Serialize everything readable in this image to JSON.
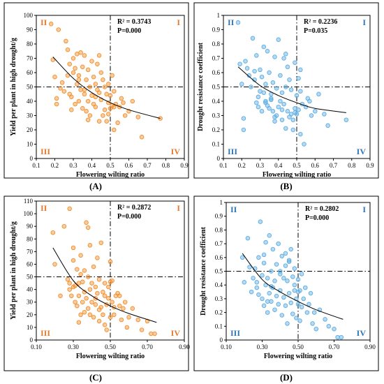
{
  "chart_data": [
    {
      "type": "scatter",
      "panel_label": "(A)",
      "xlabel": "Flowering wilting ratio",
      "ylabel": "Yield per plant in high drought/g",
      "xlim": [
        0.1,
        0.9
      ],
      "ylim": [
        0,
        100
      ],
      "xticks": [
        "0.1",
        "0.2",
        "0.3",
        "0.4",
        "0.5",
        "0.6",
        "0.7",
        "0.8",
        "0.9"
      ],
      "yticks": [
        "0",
        "10",
        "20",
        "30",
        "40",
        "50",
        "60",
        "70",
        "80",
        "90",
        "100"
      ],
      "r2_text": "R² = 0.3743",
      "p_text": "P=0.000",
      "quadrants": {
        "I": "I",
        "II": "II",
        "III": "III",
        "IV": "IV"
      },
      "color": "#F28E2B",
      "refline_x": 0.5,
      "refline_y": 50,
      "trend": {
        "type": "power",
        "x": [
          0.19,
          0.3,
          0.4,
          0.5,
          0.6,
          0.77
        ],
        "y": [
          71,
          56,
          46,
          39,
          34,
          28
        ]
      },
      "x": [
        0.18,
        0.19,
        0.2,
        0.21,
        0.22,
        0.23,
        0.24,
        0.25,
        0.26,
        0.27,
        0.28,
        0.28,
        0.29,
        0.3,
        0.3,
        0.31,
        0.31,
        0.32,
        0.32,
        0.33,
        0.33,
        0.34,
        0.34,
        0.35,
        0.35,
        0.36,
        0.36,
        0.37,
        0.37,
        0.38,
        0.38,
        0.39,
        0.39,
        0.4,
        0.4,
        0.41,
        0.41,
        0.42,
        0.42,
        0.43,
        0.43,
        0.44,
        0.44,
        0.45,
        0.45,
        0.46,
        0.46,
        0.47,
        0.47,
        0.48,
        0.48,
        0.49,
        0.49,
        0.5,
        0.5,
        0.51,
        0.51,
        0.52,
        0.52,
        0.53,
        0.54,
        0.55,
        0.56,
        0.57,
        0.58,
        0.6,
        0.62,
        0.65,
        0.67,
        0.77,
        0.21,
        0.27,
        0.33,
        0.38,
        0.44,
        0.49,
        0.52,
        0.29,
        0.36,
        0.42
      ],
      "y": [
        94,
        69,
        57,
        42,
        90,
        49,
        53,
        47,
        82,
        58,
        45,
        66,
        43,
        60,
        70,
        63,
        38,
        52,
        73,
        40,
        58,
        48,
        74,
        35,
        64,
        45,
        72,
        33,
        55,
        40,
        62,
        30,
        50,
        44,
        68,
        38,
        57,
        36,
        52,
        48,
        66,
        26,
        46,
        41,
        60,
        30,
        55,
        34,
        50,
        45,
        26,
        39,
        52,
        44,
        35,
        37,
        58,
        20,
        47,
        38,
        25,
        36,
        42,
        39,
        30,
        33,
        40,
        29,
        15,
        28,
        38,
        76,
        55,
        27,
        72,
        31,
        36,
        34,
        48,
        43
      ]
    },
    {
      "type": "scatter",
      "panel_label": "(B)",
      "xlabel": "Flowering wilting ratio",
      "ylabel": "Drought resistance coefficient",
      "xlim": [
        0.1,
        0.9
      ],
      "ylim": [
        0,
        1
      ],
      "xticks": [
        "0.1",
        "0.2",
        "0.3",
        "0.4",
        "0.5",
        "0.6",
        "0.7",
        "0.8",
        "0.9"
      ],
      "yticks": [
        "0",
        "0.1",
        "0.2",
        "0.3",
        "0.4",
        "0.5",
        "0.6",
        "0.7",
        "0.8",
        "0.9",
        "1"
      ],
      "r2_text": "R² = 0.2236",
      "p_text": "P=0.035",
      "quadrants": {
        "I": "I",
        "II": "II",
        "III": "III",
        "IV": "IV"
      },
      "color": "#5DADE2",
      "refline_x": 0.5,
      "refline_y": 0.5,
      "trend": {
        "type": "power",
        "x": [
          0.18,
          0.3,
          0.4,
          0.5,
          0.6,
          0.77
        ],
        "y": [
          0.64,
          0.51,
          0.44,
          0.39,
          0.35,
          0.32
        ]
      },
      "x": [
        0.18,
        0.19,
        0.2,
        0.21,
        0.22,
        0.23,
        0.24,
        0.25,
        0.26,
        0.27,
        0.28,
        0.28,
        0.29,
        0.3,
        0.3,
        0.31,
        0.31,
        0.32,
        0.32,
        0.33,
        0.33,
        0.34,
        0.34,
        0.35,
        0.35,
        0.36,
        0.36,
        0.37,
        0.37,
        0.38,
        0.38,
        0.39,
        0.39,
        0.4,
        0.4,
        0.41,
        0.41,
        0.42,
        0.42,
        0.43,
        0.43,
        0.44,
        0.44,
        0.45,
        0.45,
        0.46,
        0.46,
        0.47,
        0.47,
        0.48,
        0.48,
        0.49,
        0.49,
        0.5,
        0.5,
        0.51,
        0.51,
        0.52,
        0.52,
        0.53,
        0.54,
        0.55,
        0.56,
        0.57,
        0.58,
        0.6,
        0.62,
        0.65,
        0.67,
        0.77,
        0.21,
        0.27,
        0.33,
        0.38,
        0.44,
        0.49,
        0.52,
        0.29,
        0.36,
        0.42
      ],
      "y": [
        0.95,
        0.66,
        0.52,
        0.2,
        0.68,
        0.63,
        0.58,
        0.5,
        0.84,
        0.55,
        0.39,
        0.72,
        0.43,
        0.62,
        0.47,
        0.57,
        0.33,
        0.46,
        0.78,
        0.4,
        0.52,
        0.37,
        0.75,
        0.35,
        0.6,
        0.42,
        0.45,
        0.33,
        0.53,
        0.29,
        0.71,
        0.3,
        0.49,
        0.36,
        0.83,
        0.4,
        0.58,
        0.27,
        0.46,
        0.38,
        0.7,
        0.21,
        0.5,
        0.33,
        0.64,
        0.29,
        0.55,
        0.31,
        0.48,
        0.27,
        0.2,
        0.35,
        0.67,
        0.44,
        0.31,
        0.34,
        0.56,
        0.17,
        0.47,
        0.38,
        0.1,
        0.36,
        0.42,
        0.4,
        0.3,
        0.33,
        0.45,
        0.31,
        0.23,
        0.27,
        0.28,
        0.61,
        0.39,
        0.26,
        0.73,
        0.32,
        0.62,
        0.36,
        0.41,
        0.34
      ]
    },
    {
      "type": "scatter",
      "panel_label": "(C)",
      "xlabel": "Flowering wilting ratio",
      "ylabel": "Yield per plant in high drought/g",
      "xlim": [
        0.1,
        0.9
      ],
      "ylim": [
        0,
        110
      ],
      "xticks": [
        "0.10",
        "0.30",
        "0.50",
        "0.70",
        "0.90"
      ],
      "xtick_values": [
        0.1,
        0.3,
        0.5,
        0.7,
        0.9
      ],
      "yticks": [
        "0",
        "10",
        "20",
        "30",
        "40",
        "50",
        "60",
        "70",
        "80",
        "90",
        "100",
        "110"
      ],
      "r2_text": "R² = 0.2872",
      "p_text": "P=0.000",
      "quadrants": {
        "I": "I",
        "II": "II",
        "III": "III",
        "IV": "IV"
      },
      "color": "#F28E2B",
      "refline_x": 0.5,
      "refline_y": 50,
      "trend": {
        "type": "power",
        "x": [
          0.19,
          0.3,
          0.4,
          0.5,
          0.6,
          0.75
        ],
        "y": [
          73,
          47,
          35,
          27,
          21,
          14
        ]
      },
      "x": [
        0.19,
        0.2,
        0.23,
        0.25,
        0.27,
        0.28,
        0.28,
        0.29,
        0.3,
        0.3,
        0.31,
        0.31,
        0.32,
        0.32,
        0.33,
        0.33,
        0.34,
        0.34,
        0.35,
        0.35,
        0.36,
        0.36,
        0.37,
        0.37,
        0.38,
        0.38,
        0.38,
        0.39,
        0.39,
        0.4,
        0.4,
        0.41,
        0.41,
        0.42,
        0.42,
        0.43,
        0.43,
        0.44,
        0.44,
        0.45,
        0.45,
        0.46,
        0.46,
        0.47,
        0.47,
        0.48,
        0.48,
        0.49,
        0.49,
        0.5,
        0.5,
        0.51,
        0.51,
        0.52,
        0.52,
        0.53,
        0.54,
        0.55,
        0.56,
        0.57,
        0.58,
        0.59,
        0.6,
        0.62,
        0.65,
        0.67,
        0.7,
        0.72,
        0.74,
        0.3,
        0.36,
        0.42,
        0.47,
        0.33,
        0.39,
        0.44,
        0.5,
        0.55,
        0.28,
        0.34
      ],
      "y": [
        85,
        60,
        35,
        90,
        48,
        104,
        45,
        35,
        63,
        73,
        30,
        43,
        27,
        56,
        35,
        45,
        20,
        67,
        46,
        30,
        55,
        38,
        93,
        33,
        25,
        50,
        89,
        20,
        75,
        45,
        30,
        58,
        18,
        42,
        28,
        37,
        65,
        15,
        48,
        26,
        77,
        38,
        20,
        45,
        35,
        28,
        8,
        42,
        33,
        62,
        18,
        30,
        47,
        26,
        20,
        35,
        37,
        27,
        16,
        25,
        30,
        10,
        18,
        25,
        16,
        8,
        15,
        5,
        5,
        42,
        22,
        33,
        12,
        14,
        40,
        24,
        46,
        35,
        40,
        52
      ]
    },
    {
      "type": "scatter",
      "panel_label": "(D)",
      "xlabel": "Flowering wilting ratio",
      "ylabel": "Drought resistance coefficient",
      "xlim": [
        0.1,
        0.9
      ],
      "ylim": [
        0,
        1
      ],
      "xticks": [
        "0.10",
        "0.30",
        "0.50",
        "0.70",
        "0.90"
      ],
      "xtick_values": [
        0.1,
        0.3,
        0.5,
        0.7,
        0.9
      ],
      "yticks": [
        "0",
        "0.1",
        "0.2",
        "0.3",
        "0.4",
        "0.5",
        "0.6",
        "0.7",
        "0.8",
        "0.9",
        "1"
      ],
      "r2_text": "R² = 0.2802",
      "p_text": "P=0.000",
      "quadrants": {
        "I": "I",
        "II": "II",
        "III": "III",
        "IV": "IV"
      },
      "color": "#5DADE2",
      "refline_x": 0.5,
      "refline_y": 0.5,
      "trend": {
        "type": "power",
        "x": [
          0.19,
          0.3,
          0.4,
          0.5,
          0.6,
          0.75
        ],
        "y": [
          0.63,
          0.44,
          0.35,
          0.28,
          0.22,
          0.15
        ]
      },
      "x": [
        0.19,
        0.2,
        0.22,
        0.23,
        0.24,
        0.25,
        0.26,
        0.27,
        0.28,
        0.28,
        0.29,
        0.3,
        0.3,
        0.31,
        0.31,
        0.32,
        0.32,
        0.33,
        0.33,
        0.34,
        0.34,
        0.35,
        0.35,
        0.36,
        0.36,
        0.37,
        0.37,
        0.38,
        0.38,
        0.39,
        0.39,
        0.4,
        0.4,
        0.41,
        0.41,
        0.42,
        0.42,
        0.43,
        0.43,
        0.44,
        0.44,
        0.45,
        0.45,
        0.46,
        0.46,
        0.47,
        0.47,
        0.48,
        0.48,
        0.49,
        0.49,
        0.5,
        0.5,
        0.51,
        0.51,
        0.52,
        0.52,
        0.53,
        0.54,
        0.55,
        0.56,
        0.57,
        0.58,
        0.59,
        0.6,
        0.62,
        0.65,
        0.67,
        0.7,
        0.72,
        0.74,
        0.31,
        0.35,
        0.4,
        0.45,
        0.5,
        0.27,
        0.33,
        0.43,
        0.48
      ],
      "y": [
        0.6,
        0.42,
        0.74,
        0.53,
        0.35,
        0.45,
        0.52,
        0.38,
        0.6,
        0.33,
        0.86,
        0.47,
        0.3,
        0.56,
        0.25,
        0.71,
        0.4,
        0.45,
        0.2,
        0.76,
        0.34,
        0.5,
        0.28,
        0.66,
        0.38,
        0.43,
        0.22,
        0.55,
        0.32,
        0.7,
        0.26,
        0.5,
        0.36,
        0.61,
        0.18,
        0.45,
        0.31,
        0.63,
        0.25,
        0.43,
        0.12,
        0.57,
        0.34,
        0.66,
        0.27,
        0.46,
        0.19,
        0.4,
        0.52,
        0.3,
        0.16,
        0.44,
        0.26,
        0.36,
        0.14,
        0.48,
        0.24,
        0.3,
        0.38,
        0.2,
        0.26,
        0.34,
        0.12,
        0.2,
        0.08,
        0.22,
        0.15,
        0.1,
        0.08,
        0.02,
        0.02,
        0.62,
        0.39,
        0.48,
        0.58,
        0.35,
        0.42,
        0.28,
        0.54,
        0.36
      ]
    }
  ]
}
